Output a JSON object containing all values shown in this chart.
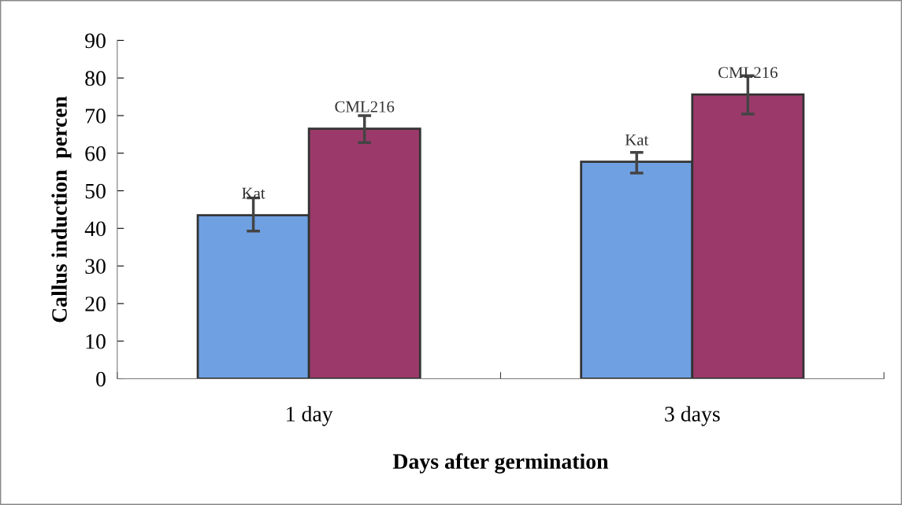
{
  "chart_data": {
    "type": "bar",
    "xlabel": "Days after germination",
    "ylabel": "Callus induction  percen",
    "categories": [
      "1 day",
      "3 days"
    ],
    "series": [
      {
        "name": "Kat",
        "color": "#6fa0e2",
        "values": [
          43.5,
          57.7
        ],
        "errors": [
          [
            39.3,
            48.1
          ],
          [
            54.7,
            60.2
          ]
        ]
      },
      {
        "name": "CML216",
        "color": "#9b3a6a",
        "values": [
          66.5,
          75.6
        ],
        "errors": [
          [
            62.8,
            70.0
          ],
          [
            70.4,
            80.6
          ]
        ]
      }
    ],
    "ylim": [
      0,
      90
    ],
    "yticks": [
      0,
      10,
      20,
      30,
      40,
      50,
      60,
      70,
      80,
      90
    ],
    "grid": false,
    "legend": false
  }
}
